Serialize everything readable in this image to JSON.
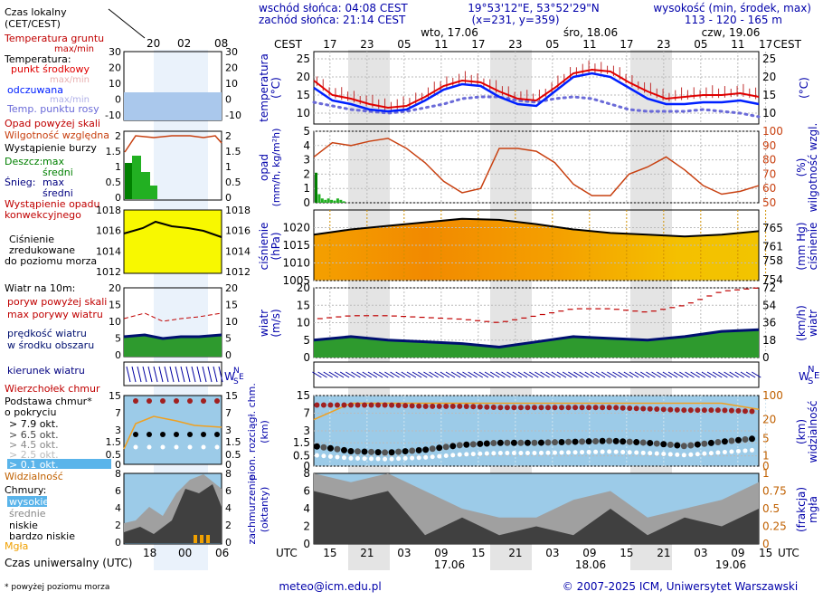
{
  "header": {
    "sunrise": "wschód słońca: 04:08 CEST",
    "sunset": "zachód słońca: 21:14 CEST",
    "coords": "19°53'12\"E, 53°52'29\"N",
    "grid": "(x=231, y=359)",
    "elev_title": "wysokość (min, środek, max)",
    "elev_values": "113 - 120 - 165 m",
    "days": [
      "wto, 17.06",
      "śro, 18.06",
      "czw, 19.06"
    ],
    "tz_top": "CEST",
    "tz_bottom": "UTC"
  },
  "time_axis": {
    "cest_ticks": [
      "17",
      "23",
      "05",
      "11",
      "17",
      "23",
      "05",
      "11",
      "17",
      "23",
      "05",
      "11",
      "17"
    ],
    "utc_ticks": [
      "15",
      "21",
      "03",
      "09",
      "15",
      "21",
      "03",
      "09",
      "15",
      "21",
      "03",
      "09",
      "15"
    ],
    "utc_dates": [
      "17.06",
      "18.06",
      "19.06"
    ]
  },
  "legend": {
    "time_local": "Czas lokalny",
    "time_local_sub": "(CET/CEST)",
    "legend_cest_ticks": [
      "20",
      "02",
      "08"
    ],
    "legend_utc_ticks": [
      "18",
      "00",
      "06"
    ],
    "soil_temp": "Temperatura gruntu",
    "max_min": "max/min",
    "temperature": "Temperatura:",
    "mid_point": "punkt środkowy",
    "max_min2": "max/min",
    "felt": "odczuwana",
    "max_min3": "max/min",
    "dew_point": "Temp. punktu rosy",
    "precip_above": "Opad powyżej skali",
    "humidity": "Wilgotność względna",
    "storm": "Wystąpienie burzy",
    "rain": "Deszcz:",
    "snow": "Śnieg:",
    "max": "max",
    "mean": "średni",
    "convective": "Wystąpienie opadu",
    "convective2": "konwekcyjnego",
    "pressure1": "Ciśnienie",
    "pressure2": "zredukowane",
    "pressure3": "do poziomu morza",
    "wind_title": "Wiatr na 10m:",
    "gusts_above": "poryw powyżej skali",
    "gusts_max": "max porywy wiatru",
    "wind_speed": "prędkość wiatru",
    "wind_area": "w środku obszaru",
    "wind_dir": "kierunek wiatru",
    "cloud_top": "Wierzchołek chmur",
    "cloud_base1": "Podstawa chmur*",
    "cloud_base2": "o pokryciu",
    "okt": [
      "> 7.9 okt.",
      "> 6.5 okt.",
      "> 4.5 okt.",
      "> 2.5 okt.",
      "> 0.1 okt."
    ],
    "visibility": "Widzialność",
    "clouds": "Chmury:",
    "cloud_high": "wysokie",
    "cloud_mid": "średnie",
    "cloud_low": "niskie",
    "cloud_vlow": "bardzo niskie",
    "fog": "Mgła",
    "time_utc": "Czas uniwersalny (UTC)",
    "footnote": "* powyżej poziomu morza"
  },
  "footer": {
    "email": "meteo@icm.edu.pl",
    "copyright": "© 2007-2025 ICM, Uniwersytet Warszawski"
  },
  "chart_data": [
    {
      "type": "line",
      "name": "temperature",
      "ylabel": "temperatura (°C)",
      "ylim": [
        7,
        27
      ],
      "y_ticks": [
        10,
        15,
        20,
        25
      ],
      "x_hours": [
        0,
        6,
        12,
        18,
        24,
        30,
        36,
        42,
        48,
        54,
        60,
        66,
        72,
        78,
        84,
        90,
        96,
        102,
        108,
        114,
        120,
        126,
        132,
        138,
        144
      ],
      "series": [
        {
          "name": "punkt środkowy",
          "values": [
            19,
            15,
            14,
            12.5,
            11.5,
            12,
            14.5,
            17.5,
            19,
            18.5,
            16,
            14,
            13.5,
            17,
            21,
            22,
            21.5,
            18.5,
            16,
            14,
            14.5,
            15,
            15,
            15.5,
            14.5
          ]
        },
        {
          "name": "odczuwana",
          "values": [
            17,
            13.5,
            12.5,
            11,
            10.5,
            11,
            13.5,
            16.5,
            18,
            17.5,
            14.5,
            12.5,
            12,
            16,
            20,
            21,
            20,
            17,
            14,
            12.5,
            12.5,
            13,
            13,
            13.5,
            12.5
          ]
        },
        {
          "name": "Temp. punktu rosy",
          "values": [
            13,
            12,
            11,
            10.5,
            10,
            10.5,
            11.5,
            12.5,
            14,
            14.5,
            14.5,
            13.5,
            13,
            14,
            14.5,
            14,
            12.5,
            11,
            10.5,
            10.5,
            10.5,
            11,
            10.5,
            10,
            9
          ]
        }
      ]
    },
    {
      "type": "bar",
      "name": "precipitation",
      "ylabel": "opad (mm/h, kg/m²h)",
      "ylim": [
        0,
        5
      ],
      "y_ticks": [
        0,
        1,
        2,
        3,
        4,
        5
      ],
      "y2label": "wilgotność wzgl. (%)",
      "y2lim": [
        50,
        100
      ],
      "y2_ticks": [
        50,
        60,
        70,
        80,
        90,
        100
      ],
      "rain_hours": [
        0,
        1,
        2,
        3,
        4,
        5,
        6,
        7,
        8,
        9
      ],
      "rain_values": [
        2.1,
        0.6,
        0.3,
        0.2,
        0.3,
        0.2,
        0.15,
        0.3,
        0.2,
        0.1
      ],
      "humidity_hours": [
        0,
        6,
        12,
        18,
        24,
        30,
        36,
        42,
        48,
        54,
        60,
        66,
        72,
        78,
        84,
        90,
        96,
        102,
        108,
        114,
        120,
        126,
        132,
        138,
        144
      ],
      "humidity_values": [
        82,
        92,
        90,
        93,
        95,
        88,
        78,
        65,
        57,
        60,
        88,
        88,
        86,
        78,
        63,
        55,
        55,
        70,
        75,
        82,
        73,
        62,
        56,
        58,
        62
      ]
    },
    {
      "type": "area",
      "name": "pressure",
      "ylabel": "ciśnienie (hPa)",
      "ylim": [
        1005,
        1025
      ],
      "y_ticks": [
        1005,
        1010,
        1015,
        1020
      ],
      "y2label": "ciśnienie (mm Hg)",
      "y2_ticks": [
        754,
        758,
        761,
        765
      ],
      "x_hours": [
        0,
        12,
        24,
        36,
        48,
        60,
        72,
        84,
        96,
        108,
        120,
        132,
        144
      ],
      "values": [
        1018,
        1019.5,
        1020.5,
        1021.5,
        1022.5,
        1022.2,
        1021,
        1019.5,
        1018.5,
        1018,
        1017.5,
        1018,
        1019
      ]
    },
    {
      "type": "line",
      "name": "wind",
      "ylabel": "wiatr (m/s)",
      "ylim": [
        0,
        20
      ],
      "y_ticks": [
        0,
        5,
        10,
        15,
        20
      ],
      "y2label": "wiatr (km/h)",
      "y2_ticks": [
        0,
        18,
        36,
        54,
        72
      ],
      "x_hours": [
        0,
        12,
        24,
        36,
        48,
        60,
        72,
        84,
        96,
        108,
        120,
        132,
        144
      ],
      "series": [
        {
          "name": "prędkość wiatru",
          "values": [
            5,
            6,
            5,
            4.5,
            4,
            3,
            4.5,
            6,
            5.5,
            5,
            6,
            7.5,
            8
          ]
        },
        {
          "name": "max porywy wiatru",
          "values": [
            11,
            12,
            12,
            11.5,
            11,
            10,
            12,
            14,
            14,
            13,
            15,
            19,
            20
          ]
        }
      ]
    },
    {
      "type": "scatter",
      "name": "clouds_base",
      "ylabel": "pion. rozciągł. chm. (km)",
      "ylim": [
        0,
        15
      ],
      "y_ticks": [
        0,
        0.5,
        1.5,
        3.0,
        7.0,
        15.0
      ],
      "y2label": "widzialność (km)",
      "y2_ticks": [
        0,
        1,
        5,
        20,
        100
      ],
      "x_hours": [
        0,
        12,
        24,
        36,
        48,
        60,
        72,
        84,
        96,
        108,
        120,
        132,
        144
      ],
      "top_values": [
        10,
        10,
        10,
        9.5,
        9.5,
        9,
        9,
        9,
        9,
        8.5,
        8,
        8,
        7.5
      ],
      "base_values": [
        1.2,
        0.8,
        0.7,
        0.9,
        1.3,
        1.5,
        1.5,
        1.6,
        1.7,
        1.5,
        1.2,
        1.6,
        2.0
      ],
      "visibility_values": [
        20,
        60,
        60,
        60,
        60,
        60,
        60,
        60,
        60,
        60,
        60,
        60,
        40
      ]
    },
    {
      "type": "area",
      "name": "cloud_cover",
      "ylabel": "zachmurzenie (oktanty)",
      "ylim": [
        0,
        8
      ],
      "y_ticks": [
        0,
        2,
        4,
        6,
        8
      ],
      "y2label": "(frakcja) mgła",
      "y2_ticks": [
        0,
        0.25,
        0.5,
        0.75,
        1
      ],
      "x_hours": [
        0,
        12,
        24,
        36,
        48,
        60,
        72,
        84,
        96,
        108,
        120,
        132,
        144
      ],
      "low_values": [
        6,
        5,
        6,
        1,
        3,
        1,
        2,
        1,
        4,
        1,
        3,
        2,
        4
      ],
      "high_values": [
        8,
        7,
        8,
        6,
        4,
        3,
        3,
        5,
        6,
        3,
        4,
        5,
        7
      ]
    }
  ]
}
